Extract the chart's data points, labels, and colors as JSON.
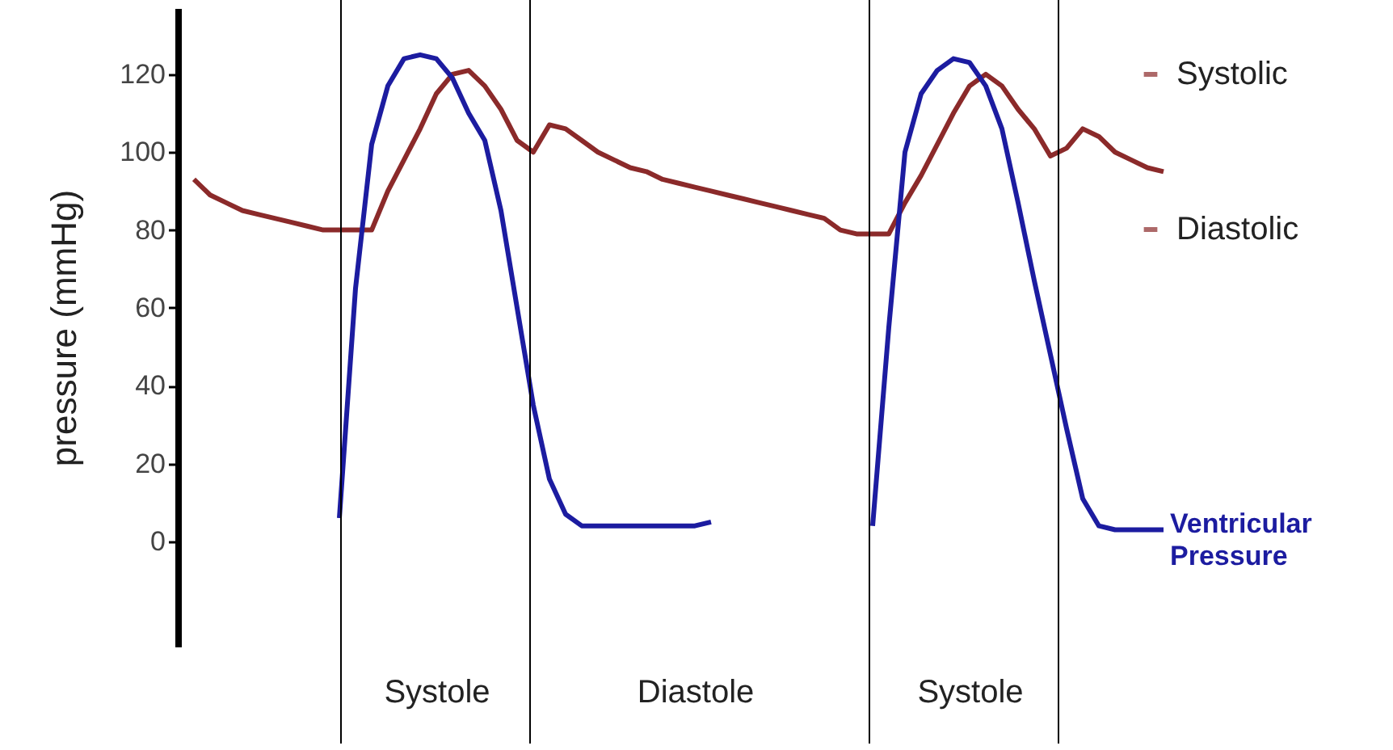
{
  "chart_data": {
    "type": "line",
    "ylabel": "pressure (mmHg)",
    "ylim": [
      -27,
      137
    ],
    "yticks": [
      0,
      20,
      40,
      60,
      80,
      100,
      120
    ],
    "grid": false,
    "categories": [
      null,
      null,
      null,
      null,
      null,
      null,
      null,
      null,
      null,
      null,
      null,
      null,
      null,
      null,
      null,
      "Systole",
      null,
      null,
      null,
      null,
      null,
      null,
      null,
      null,
      null,
      null,
      null,
      null,
      null,
      null,
      null,
      "Diastole",
      null,
      null,
      null,
      null,
      null,
      null,
      null,
      null,
      null,
      null,
      null,
      null,
      null,
      null,
      null,
      null,
      "Systole",
      null,
      null,
      null,
      null,
      null,
      null,
      null,
      null,
      null,
      null,
      null,
      null
    ],
    "series": [
      {
        "color": "#8b2a2a",
        "values": [
          93,
          89,
          87,
          85,
          84,
          83,
          82,
          81,
          80,
          80,
          80,
          80,
          90,
          98,
          106,
          115,
          120,
          121,
          117,
          111,
          103,
          100,
          107,
          106,
          103,
          100,
          98,
          96,
          95,
          93,
          92,
          91,
          90,
          89,
          88,
          87,
          86,
          85,
          84,
          83,
          80,
          79,
          79,
          79,
          87,
          94,
          102,
          110,
          117,
          120,
          117,
          111,
          106,
          99,
          101,
          106,
          104,
          100,
          98,
          96,
          95
        ]
      },
      {
        "name": "Ventricular Pressure",
        "color": "#1c1ca0",
        "values": [
          null,
          null,
          null,
          null,
          null,
          null,
          null,
          null,
          null,
          6,
          65,
          102,
          117,
          124,
          125,
          124,
          119,
          110,
          103,
          85,
          60,
          35,
          16,
          7,
          4,
          4,
          4,
          4,
          4,
          4,
          4,
          4,
          5,
          null,
          null,
          null,
          null,
          null,
          null,
          null,
          null,
          null,
          4,
          55,
          100,
          115,
          121,
          124,
          123,
          117,
          106,
          87,
          67,
          48,
          29,
          11,
          4,
          3,
          3,
          3,
          3
        ]
      }
    ],
    "annotations": [
      "Systolic",
      "Diastolic"
    ]
  }
}
